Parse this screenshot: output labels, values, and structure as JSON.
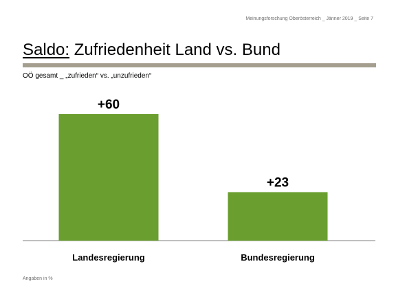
{
  "header": {
    "meta": "Meinungsforschung Oberösterreich _ Jänner 2019 _ Seite 7"
  },
  "slide": {
    "title_prefix": "Saldo:",
    "title_rest": " Zufriedenheit Land vs. Bund",
    "subtitle": "OÖ gesamt _ „zufrieden“ vs. „unzufrieden“",
    "footnote": "Angaben in %"
  },
  "colors": {
    "bar": "#6a9e2f",
    "axis": "#7f7f7f",
    "rule": "#a39e8e"
  },
  "chart_data": {
    "type": "bar",
    "categories": [
      "Landesregierung",
      "Bundesregierung"
    ],
    "values": [
      60,
      23
    ],
    "data_labels": [
      "+60",
      "+23"
    ],
    "ylim": [
      0,
      60
    ],
    "grid": false,
    "legend": "none"
  }
}
